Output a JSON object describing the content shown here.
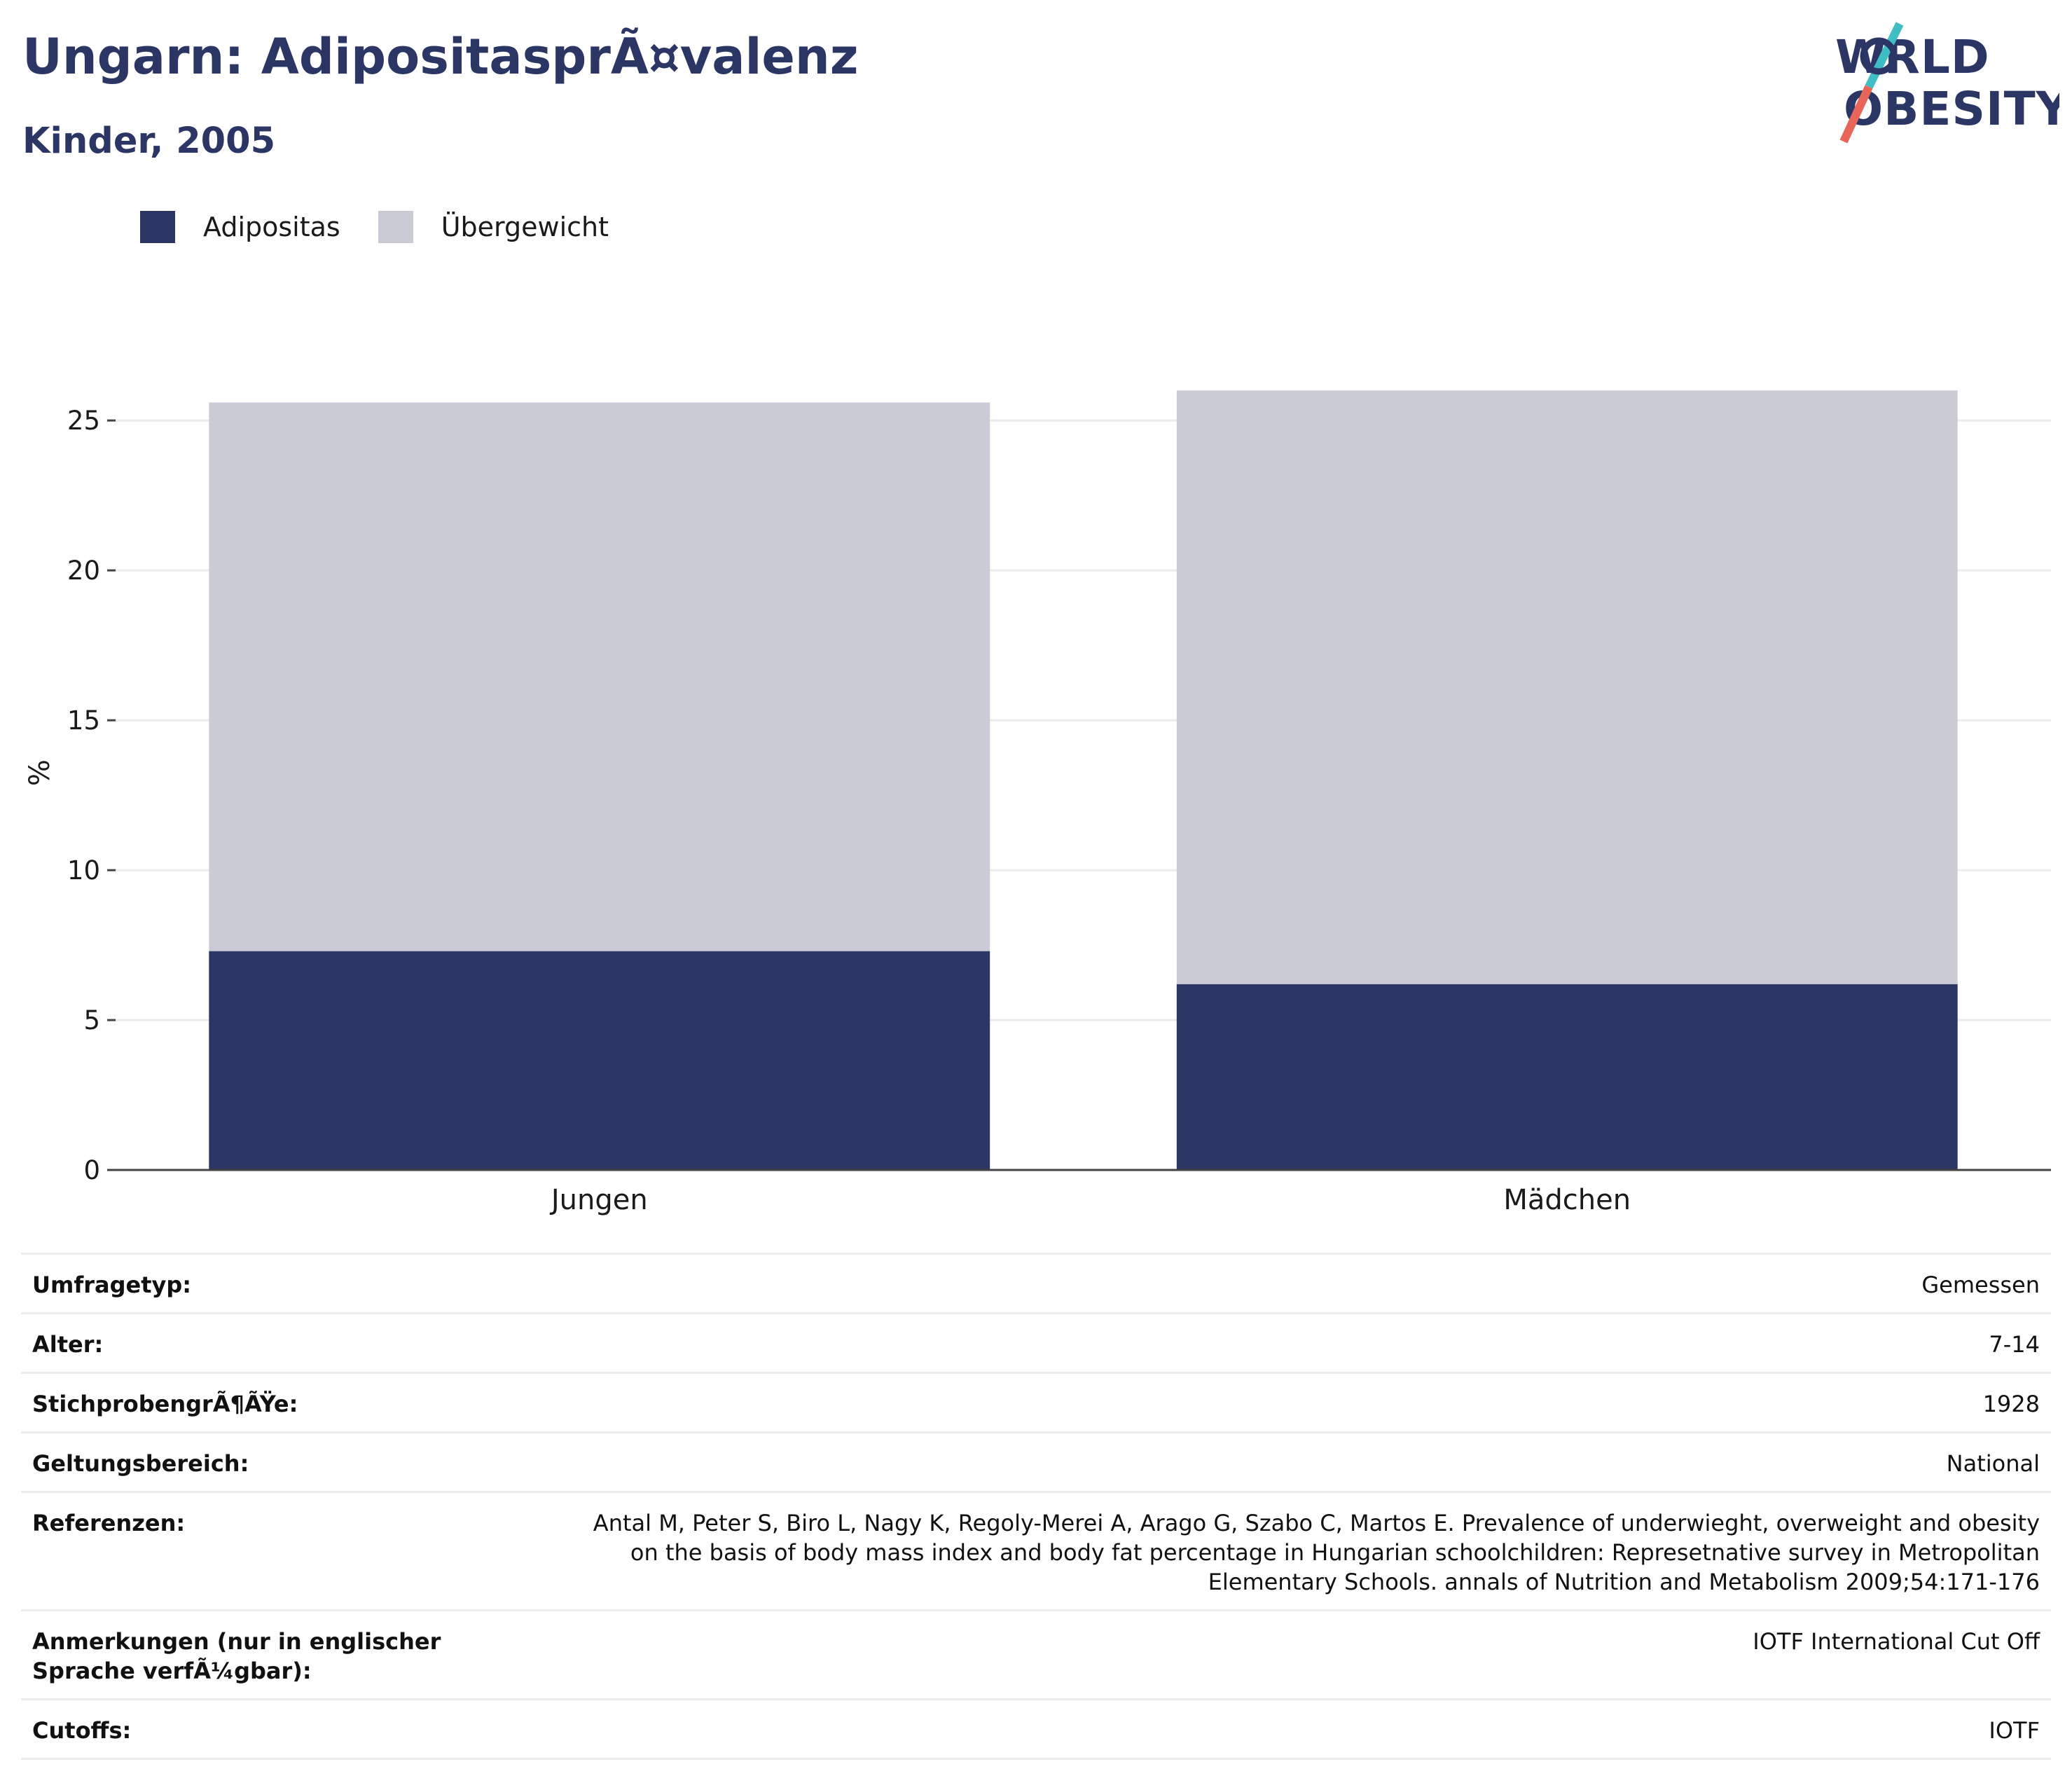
{
  "title": "Ungarn: AdipositasprÃ¤valenz",
  "subtitle": "Kinder, 2005",
  "logo": {
    "line1": "WORLD",
    "line2": "OBESITY"
  },
  "colors": {
    "adipositas": "#2b3664",
    "uebergewicht": "#cacbd7",
    "title": "#2b3664",
    "grid": "#ebebeb",
    "axis": "#444444",
    "logo_teal": "#3fbfc4",
    "logo_red": "#e8655a"
  },
  "legend": [
    {
      "label": "Adipositas"
    },
    {
      "label": "Übergewicht"
    }
  ],
  "chart_data": {
    "type": "bar",
    "stacked": true,
    "categories": [
      "Jungen",
      "Mädchen"
    ],
    "series": [
      {
        "name": "Adipositas",
        "values": [
          7.3,
          6.2
        ]
      },
      {
        "name": "Übergewicht",
        "values": [
          18.3,
          19.8
        ]
      }
    ],
    "ylabel": "%",
    "ylim": [
      0,
      26.5
    ],
    "yticks": [
      0,
      5,
      10,
      15,
      20,
      25
    ],
    "grid": true,
    "legend_position": "top-left"
  },
  "info": [
    {
      "key": "Umfragetyp:",
      "value": "Gemessen"
    },
    {
      "key": "Alter:",
      "value": "7-14"
    },
    {
      "key": "StichprobengrÃ¶ÃŸe:",
      "value": "1928"
    },
    {
      "key": "Geltungsbereich:",
      "value": "National"
    },
    {
      "key": "Referenzen:",
      "value": "Antal M, Peter S, Biro L, Nagy K, Regoly-Merei A, Arago G, Szabo C, Martos E. Prevalence of underwieght, overweight and obesity on the basis of body mass index and body fat percentage in Hungarian schoolchildren: Represetnative survey in Metropolitan Elementary Schools. annals of Nutrition and Metabolism 2009;54:171-176"
    },
    {
      "key": "Anmerkungen (nur in englischer Sprache verfÃ¼gbar):",
      "value": "IOTF International Cut Off"
    },
    {
      "key": "Cutoffs:",
      "value": "IOTF"
    }
  ]
}
